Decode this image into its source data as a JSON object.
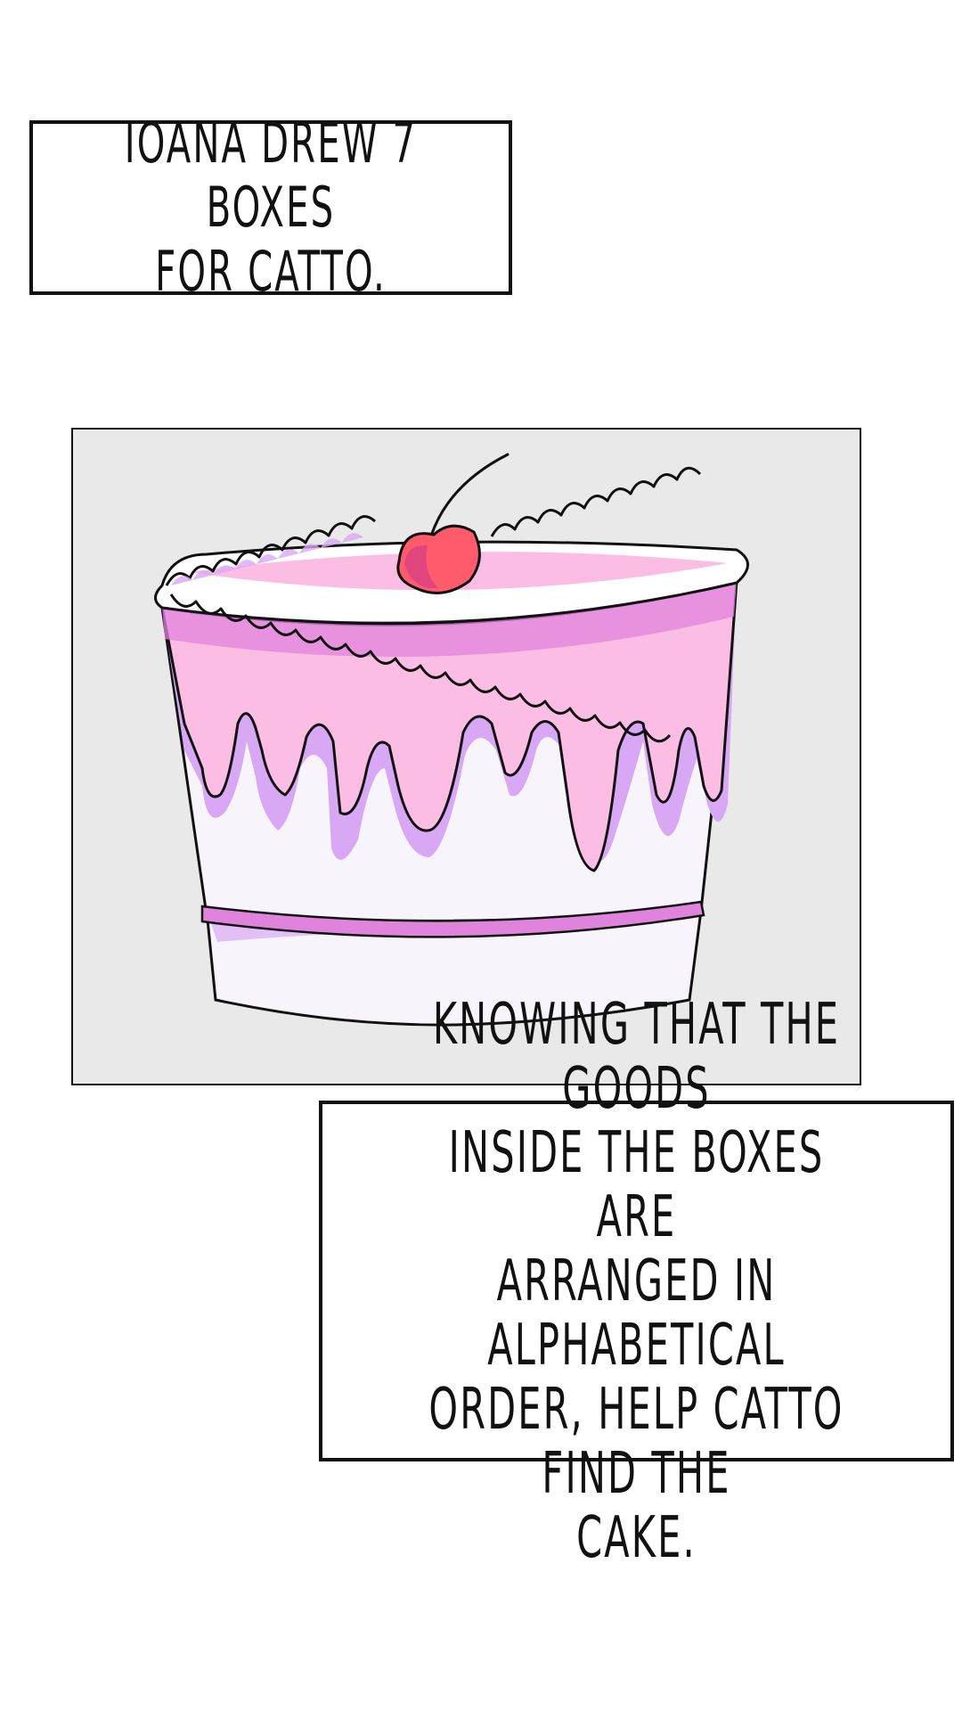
{
  "captions": {
    "top": "IOANA DREW 7 BOXES\nFOR CATTO.",
    "bottom": "KNOWING THAT THE GOODS\nINSIDE THE BOXES ARE\nARRANGED IN ALPHABETICAL\nORDER, HELP CATTO FIND THE\nCAKE."
  },
  "illustration": {
    "subject": "cake-illustration",
    "colors": {
      "background": "#e9e9e9",
      "frosting_light": "#fbbde4",
      "frosting_mid": "#e083dd",
      "frosting_shadow": "#d9a8f5",
      "cake_body": "#f7f5fb",
      "cherry": "#ff5b6d",
      "cherry_shadow": "#e0457d",
      "outline": "#111111"
    }
  }
}
